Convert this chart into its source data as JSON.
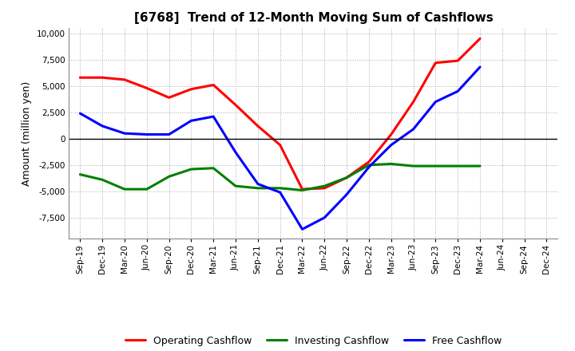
{
  "title": "[6768]  Trend of 12-Month Moving Sum of Cashflows",
  "ylabel": "Amount (million yen)",
  "x_labels": [
    "Sep-19",
    "Dec-19",
    "Mar-20",
    "Jun-20",
    "Sep-20",
    "Dec-20",
    "Mar-21",
    "Jun-21",
    "Sep-21",
    "Dec-21",
    "Mar-22",
    "Jun-22",
    "Sep-22",
    "Dec-22",
    "Mar-23",
    "Jun-23",
    "Sep-23",
    "Dec-23",
    "Mar-24",
    "Jun-24",
    "Sep-24",
    "Dec-24"
  ],
  "operating": [
    5800,
    5800,
    5600,
    4800,
    3900,
    4700,
    5100,
    3200,
    1200,
    -600,
    -4800,
    -4700,
    -3700,
    -2200,
    400,
    3500,
    7200,
    7400,
    9500,
    null,
    null,
    null
  ],
  "investing": [
    -3400,
    -3900,
    -4800,
    -4800,
    -3600,
    -2900,
    -2800,
    -4500,
    -4700,
    -4700,
    -4900,
    -4500,
    -3700,
    -2500,
    -2400,
    -2600,
    -2600,
    -2600,
    -2600,
    null,
    null,
    null
  ],
  "free": [
    2400,
    1200,
    500,
    400,
    400,
    1700,
    2100,
    -1300,
    -4300,
    -5100,
    -8600,
    -7500,
    -5300,
    -2700,
    -600,
    900,
    3500,
    4500,
    6800,
    null,
    null,
    null
  ],
  "ylim": [
    -9500,
    10500
  ],
  "yticks": [
    -7500,
    -5000,
    -2500,
    0,
    2500,
    5000,
    7500,
    10000
  ],
  "operating_color": "#ff0000",
  "investing_color": "#008000",
  "free_color": "#0000ff",
  "line_width": 2.2,
  "bg_color": "#ffffff",
  "grid_color": "#aaaaaa",
  "title_fontsize": 11,
  "ylabel_fontsize": 9,
  "tick_fontsize": 7.5,
  "legend_fontsize": 9
}
